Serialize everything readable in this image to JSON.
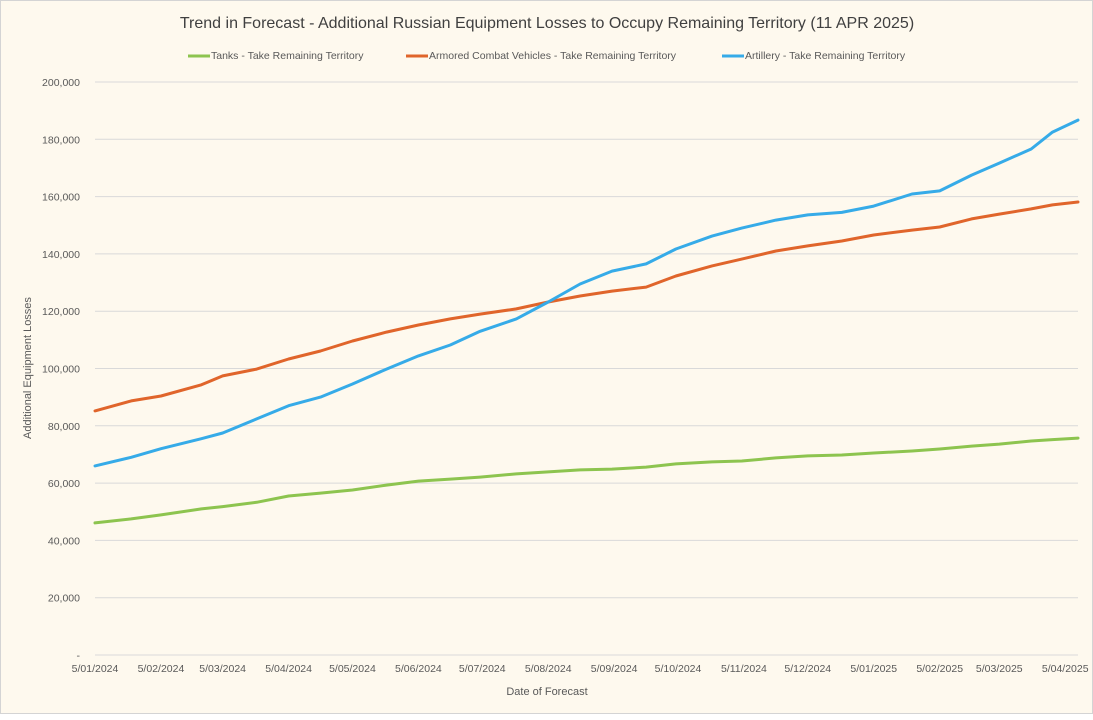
{
  "chart_data": {
    "type": "line",
    "title": "Trend in Forecast - Additional Russian Equipment Losses to Occupy Remaining Territory (11 APR 2025)",
    "xlabel": "Date of Forecast",
    "ylabel": "Additional Equipment Losses",
    "ylim": [
      0,
      200000
    ],
    "yticks": [
      "-",
      "20,000",
      "40,000",
      "60,000",
      "80,000",
      "100,000",
      "120,000",
      "140,000",
      "160,000",
      "180,000",
      "200,000"
    ],
    "xlim": [
      "2024-01-05",
      "2025-04-11"
    ],
    "xticks": [
      {
        "date": "2024-01-05",
        "label": "5/01/2024"
      },
      {
        "date": "2024-02-05",
        "label": "5/02/2024"
      },
      {
        "date": "2024-03-05",
        "label": "5/03/2024"
      },
      {
        "date": "2024-04-05",
        "label": "5/04/2024"
      },
      {
        "date": "2024-05-05",
        "label": "5/05/2024"
      },
      {
        "date": "2024-06-05",
        "label": "5/06/2024"
      },
      {
        "date": "2024-07-05",
        "label": "5/07/2024"
      },
      {
        "date": "2024-08-05",
        "label": "5/08/2024"
      },
      {
        "date": "2024-09-05",
        "label": "5/09/2024"
      },
      {
        "date": "2024-10-05",
        "label": "5/10/2024"
      },
      {
        "date": "2024-11-05",
        "label": "5/11/2024"
      },
      {
        "date": "2024-12-05",
        "label": "5/12/2024"
      },
      {
        "date": "2025-01-05",
        "label": "5/01/2025"
      },
      {
        "date": "2025-02-05",
        "label": "5/02/2025"
      },
      {
        "date": "2025-03-05",
        "label": "5/03/2025"
      },
      {
        "date": "2025-04-05",
        "label": "5/04/2025"
      }
    ],
    "grid": "horizontal",
    "legend_position": "top",
    "x": [
      "2024-01-05",
      "2024-01-22",
      "2024-02-05",
      "2024-02-24",
      "2024-03-05",
      "2024-03-21",
      "2024-04-05",
      "2024-04-20",
      "2024-05-05",
      "2024-05-21",
      "2024-06-05",
      "2024-06-20",
      "2024-07-04",
      "2024-07-21",
      "2024-08-05",
      "2024-08-20",
      "2024-09-04",
      "2024-09-20",
      "2024-10-04",
      "2024-10-21",
      "2024-11-04",
      "2024-11-20",
      "2024-12-05",
      "2024-12-21",
      "2025-01-05",
      "2025-01-23",
      "2025-02-05",
      "2025-02-20",
      "2025-03-05",
      "2025-03-20",
      "2025-03-30",
      "2025-04-11"
    ],
    "series": [
      {
        "name": "Tanks - Take Remaining Territory",
        "color": "#8dc44f",
        "values": [
          46100,
          47500,
          48900,
          51000,
          51800,
          53300,
          55500,
          56500,
          57600,
          59300,
          60700,
          61400,
          62100,
          63200,
          63900,
          64600,
          64900,
          65600,
          66700,
          67400,
          67700,
          68800,
          69500,
          69800,
          70500,
          71200,
          71900,
          72900,
          73600,
          74700,
          75200,
          75700
        ]
      },
      {
        "name": "Armored Combat Vehicles - Take Remaining Territory",
        "color": "#e0652b",
        "values": [
          85200,
          88700,
          90400,
          94300,
          97400,
          99800,
          103300,
          106100,
          109600,
          112700,
          115200,
          117300,
          119000,
          120800,
          123200,
          125300,
          127000,
          128400,
          132300,
          135800,
          138200,
          141000,
          142800,
          144500,
          146600,
          148300,
          149400,
          152200,
          153900,
          155700,
          157100,
          158100
        ]
      },
      {
        "name": "Artillery - Take Remaining Territory",
        "color": "#36abe8",
        "values": [
          66000,
          69000,
          72000,
          75500,
          77500,
          82400,
          87000,
          90000,
          94600,
          99800,
          104400,
          108200,
          113000,
          117300,
          123200,
          129500,
          134000,
          136500,
          141700,
          146200,
          149000,
          151800,
          153600,
          154500,
          156700,
          160900,
          162000,
          167500,
          171700,
          176600,
          182500,
          186700
        ]
      }
    ]
  }
}
